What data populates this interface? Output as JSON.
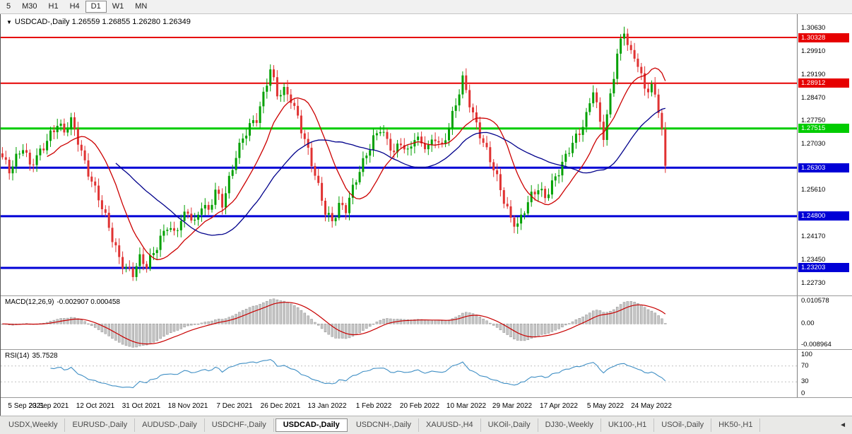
{
  "toolbar": {
    "periods": [
      {
        "label": "5",
        "active": false
      },
      {
        "label": "M30",
        "active": false
      },
      {
        "label": "H1",
        "active": false
      },
      {
        "label": "H4",
        "active": false
      },
      {
        "label": "D1",
        "active": true
      },
      {
        "label": "W1",
        "active": false
      },
      {
        "label": "MN",
        "active": false
      }
    ]
  },
  "chart": {
    "header": {
      "arrow": "▼",
      "title": "USDCAD-,Daily",
      "ohlc": "1.26559 1.26855 1.26280 1.26349"
    }
  },
  "chart_data": {
    "type": "candlestick",
    "title": "USDCAD-,Daily",
    "symbol": "USDCAD-",
    "timeframe": "Daily",
    "current_bar": {
      "open": 1.26559,
      "high": 1.26855,
      "low": 1.2628,
      "close": 1.26349
    },
    "y_axis": {
      "range": [
        1.2235,
        1.3105
      ],
      "ticks": [
        "1.30630",
        "1.29910",
        "1.29190",
        "1.28470",
        "1.27750",
        "1.27030",
        "1.25610",
        "1.24170",
        "1.23450",
        "1.22730"
      ]
    },
    "levels": [
      {
        "label": "1.30328",
        "price": 1.30328,
        "color": "#e60000",
        "thickness": 2
      },
      {
        "label": "1.28912",
        "price": 1.28912,
        "color": "#e60000",
        "thickness": 2
      },
      {
        "label": "1.27515",
        "price": 1.27515,
        "color": "#00cc00",
        "thickness": 3
      },
      {
        "label": "1.26303",
        "price": 1.26303,
        "color": "#0000d6",
        "thickness": 3
      },
      {
        "label": "1.24800",
        "price": 1.248,
        "color": "#0000d6",
        "thickness": 3
      },
      {
        "label": "1.23203",
        "price": 1.23203,
        "color": "#0000d6",
        "thickness": 3
      }
    ],
    "x_axis": {
      "slot_step": 13.5,
      "labels": [
        "5 Sep 2021",
        "23 Sep 2021",
        "12 Oct 2021",
        "31 Oct 2021",
        "18 Nov 2021",
        "7 Dec 2021",
        "26 Dec 2021",
        "13 Jan 2022",
        "1 Feb 2022",
        "20 Feb 2022",
        "10 Mar 2022",
        "29 Mar 2022",
        "17 Apr 2022",
        "5 May 2022",
        "24 May 2022"
      ]
    },
    "candles": {
      "count": 194,
      "bull_color": "#00a000",
      "bear_color": "#e03232",
      "close_anchors": [
        [
          0,
          1.2655
        ],
        [
          2,
          1.2622
        ],
        [
          4,
          1.2668
        ],
        [
          6,
          1.27
        ],
        [
          8,
          1.2632
        ],
        [
          10,
          1.2655
        ],
        [
          12,
          1.2695
        ],
        [
          14,
          1.274
        ],
        [
          16,
          1.2772
        ],
        [
          18,
          1.2738
        ],
        [
          20,
          1.2768
        ],
        [
          22,
          1.2712
        ],
        [
          24,
          1.265
        ],
        [
          26,
          1.2595
        ],
        [
          28,
          1.2535
        ],
        [
          30,
          1.247
        ],
        [
          32,
          1.2408
        ],
        [
          34,
          1.2355
        ],
        [
          36,
          1.2325
        ],
        [
          38,
          1.2302
        ],
        [
          40,
          1.2342
        ],
        [
          42,
          1.2322
        ],
        [
          44,
          1.2372
        ],
        [
          46,
          1.2418
        ],
        [
          48,
          1.2452
        ],
        [
          50,
          1.2418
        ],
        [
          52,
          1.2462
        ],
        [
          54,
          1.2498
        ],
        [
          56,
          1.2465
        ],
        [
          58,
          1.2518
        ],
        [
          60,
          1.2488
        ],
        [
          62,
          1.2552
        ],
        [
          64,
          1.252
        ],
        [
          66,
          1.26
        ],
        [
          68,
          1.2672
        ],
        [
          70,
          1.2715
        ],
        [
          72,
          1.2752
        ],
        [
          74,
          1.2782
        ],
        [
          76,
          1.2862
        ],
        [
          78,
          1.2942
        ],
        [
          80,
          1.2852
        ],
        [
          82,
          1.286
        ],
        [
          84,
          1.2842
        ],
        [
          86,
          1.2792
        ],
        [
          88,
          1.2722
        ],
        [
          90,
          1.2642
        ],
        [
          92,
          1.2562
        ],
        [
          94,
          1.2492
        ],
        [
          96,
          1.247
        ],
        [
          98,
          1.252
        ],
        [
          100,
          1.25
        ],
        [
          102,
          1.2558
        ],
        [
          104,
          1.2618
        ],
        [
          106,
          1.2678
        ],
        [
          108,
          1.2726
        ],
        [
          110,
          1.2752
        ],
        [
          112,
          1.2704
        ],
        [
          114,
          1.2672
        ],
        [
          116,
          1.2714
        ],
        [
          118,
          1.2684
        ],
        [
          120,
          1.2726
        ],
        [
          122,
          1.2696
        ],
        [
          124,
          1.2688
        ],
        [
          126,
          1.2728
        ],
        [
          128,
          1.27
        ],
        [
          130,
          1.276
        ],
        [
          132,
          1.282
        ],
        [
          134,
          1.2898
        ],
        [
          136,
          1.2832
        ],
        [
          138,
          1.277
        ],
        [
          140,
          1.271
        ],
        [
          142,
          1.265
        ],
        [
          144,
          1.259
        ],
        [
          146,
          1.253
        ],
        [
          148,
          1.248
        ],
        [
          150,
          1.2456
        ],
        [
          152,
          1.2496
        ],
        [
          154,
          1.2536
        ],
        [
          156,
          1.2566
        ],
        [
          158,
          1.2546
        ],
        [
          160,
          1.2586
        ],
        [
          162,
          1.2616
        ],
        [
          164,
          1.2656
        ],
        [
          166,
          1.2706
        ],
        [
          168,
          1.2746
        ],
        [
          170,
          1.2796
        ],
        [
          172,
          1.2872
        ],
        [
          174,
          1.276
        ],
        [
          175,
          1.2722
        ],
        [
          177,
          1.2852
        ],
        [
          179,
          1.2992
        ],
        [
          181,
          1.3056
        ],
        [
          183,
          1.2976
        ],
        [
          185,
          1.2946
        ],
        [
          187,
          1.287
        ],
        [
          189,
          1.2892
        ],
        [
          191,
          1.2816
        ],
        [
          192,
          1.275
        ],
        [
          193,
          1.2636
        ]
      ]
    },
    "moving_averages": [
      {
        "period": 14,
        "color": "#cc0000"
      },
      {
        "period": 34,
        "color": "#00008b"
      }
    ],
    "macd": {
      "title": "MACD(12,26,9)",
      "values_text": "-0.002907 0.000458",
      "fast": 12,
      "slow": 26,
      "signal": 9,
      "histogram_color": "#c6c6c6",
      "histogram_border": "#8f8f8f",
      "signal_color": "#c80000",
      "axis_labels": [
        {
          "label": "0.010578",
          "value": 0.010578
        },
        {
          "label": "0.00",
          "value": 0
        },
        {
          "label": "-0.008964",
          "value": -0.008964
        }
      ]
    },
    "rsi": {
      "title": "RSI(14)",
      "value_text": "35.7528",
      "period": 14,
      "line_color": "#3e8ec4",
      "levels": [
        70,
        30
      ],
      "axis_labels": [
        {
          "label": "100",
          "value": 100
        },
        {
          "label": "70",
          "value": 70
        },
        {
          "label": "30",
          "value": 30
        },
        {
          "label": "0",
          "value": 0
        }
      ]
    }
  },
  "tabs": {
    "scroll_icon": "◄",
    "items": [
      {
        "label": "USDX,Weekly",
        "active": false
      },
      {
        "label": "EURUSD-,Daily",
        "active": false
      },
      {
        "label": "AUDUSD-,Daily",
        "active": false
      },
      {
        "label": "USDCHF-,Daily",
        "active": false
      },
      {
        "label": "USDCAD-,Daily",
        "active": true
      },
      {
        "label": "USDCNH-,Daily",
        "active": false
      },
      {
        "label": "XAUUSD-,H4",
        "active": false
      },
      {
        "label": "UKOil-,Daily",
        "active": false
      },
      {
        "label": "DJ30-,Weekly",
        "active": false
      },
      {
        "label": "UK100-,H1",
        "active": false
      },
      {
        "label": "USOil-,Daily",
        "active": false
      },
      {
        "label": "HK50-,H1",
        "active": false
      }
    ]
  }
}
